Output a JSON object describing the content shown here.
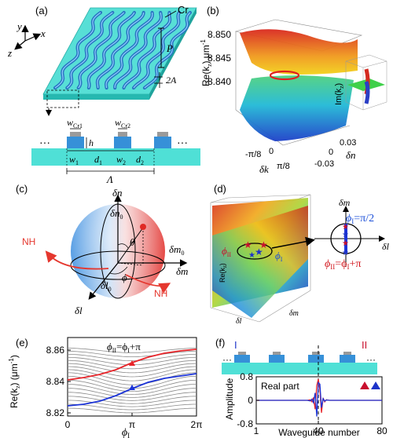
{
  "colors": {
    "substrate": "#3fd6cf",
    "substrate_dark": "#25b7b0",
    "wg": "#2f7fc7",
    "cr": "#9c9c9c",
    "band_red": "#e8252a",
    "band_blue": "#1c34d8",
    "band_gray": "#7a7a7a",
    "nh_red": "#e5372e",
    "star_red": "#c8102e",
    "star_blue": "#1d34c9",
    "phi_blue": "#1b4fd8",
    "phi_red": "#d2151c"
  },
  "panel_a": {
    "label": "(a)",
    "axis_x": "x",
    "axis_y": "y",
    "axis_z": "z",
    "cr": "Cr",
    "p": "P",
    "two_a": "2A",
    "w_cr1": "w",
    "w_cr1_sub": "Cr1",
    "w_cr2": "w",
    "w_cr2_sub": "Cr2",
    "h": "h",
    "w1": "w",
    "w1_sub": "1",
    "d1": "d",
    "d1_sub": "1",
    "w2": "w",
    "w2_sub": "2",
    "d2": "d",
    "d2_sub": "2",
    "lambda": "Λ",
    "dots": "···"
  },
  "panel_b": {
    "label": "(b)",
    "zlabel": "Re(k",
    "zlabel_sub": "z",
    "zlabel_unit": ") μm",
    "zlabel_exp": "-1",
    "zticks": [
      "8.850",
      "8.845",
      "8.840"
    ],
    "xticks": [
      "-π/8",
      "0",
      "π/8"
    ],
    "xlabel": "δk",
    "yticks": [
      "0.03",
      "0",
      "-0.03"
    ],
    "ylabel": "δn",
    "inset_label": "Im(k",
    "inset_sub": "z",
    "inset_close": ")"
  },
  "panel_c": {
    "label": "(c)",
    "dn": "δn",
    "dn0": "δn",
    "dn0_sub": "0",
    "dm": "δm",
    "dm0": "δm",
    "dm0_sub": "0",
    "dl": "δl",
    "dl0": "δl",
    "dl0_sub": "0",
    "theta": "θ",
    "phi": "ϕ",
    "nh_left": "NH",
    "nh_right": "NH"
  },
  "panel_d": {
    "label": "(d)",
    "zlabel": "Re(k",
    "zlabel_sub": "z",
    "zlabel_close": ")",
    "xlabel": "δl",
    "ylabel": "δm",
    "phi_ii": "ϕ",
    "phi_ii_sub": "II",
    "phi_i": "ϕ",
    "phi_i_sub": "I",
    "circle_dm": "δm",
    "circle_dl": "δl",
    "eq_blue": "ϕ",
    "eq_blue_sub": "I",
    "eq_blue_rhs": "=π/2",
    "eq_red": "ϕ",
    "eq_red_sub": "II",
    "eq_red_mid": "=ϕ",
    "eq_red_mid_sub": "I",
    "eq_red_rhs": "+π"
  },
  "panel_e": {
    "label": "(e)",
    "ylabel": "Re(k",
    "ylabel_sub": "z",
    "ylabel_unit": ") (μm",
    "ylabel_exp": "-1",
    "ylabel_close": ")",
    "xlabel": "ϕ",
    "xlabel_sub": "I",
    "annotation": "ϕ",
    "annotation_sub": "II",
    "annotation_mid": "=ϕ",
    "annotation_mid_sub": "I",
    "annotation_rhs": "+π",
    "yticks": [
      "8.86",
      "8.84",
      "8.82"
    ],
    "xticks": [
      "0",
      "π",
      "2π"
    ]
  },
  "panel_f": {
    "label": "(f)",
    "region_i": "I",
    "region_ii": "II",
    "dots": "···",
    "legend": "Real part",
    "ylabel": "Amplitude",
    "xlabel": "Waveguide number",
    "yticks": [
      "0.8",
      "0",
      "-0.8"
    ],
    "xticks": [
      "1",
      "40",
      "80"
    ]
  },
  "chart_data": [
    {
      "type": "line",
      "panel": "e",
      "xlabel": "ϕI",
      "ylabel": "Re(kz) (μm-1)",
      "xlim": [
        0,
        6.2832
      ],
      "ylim": [
        8.818,
        8.868
      ],
      "xticks": [
        "0",
        "π",
        "2π"
      ],
      "yticks": [
        8.86,
        8.84,
        8.82
      ],
      "x": [
        0,
        0.785,
        1.571,
        2.356,
        3.142,
        3.927,
        4.712,
        5.498,
        6.283
      ],
      "series": [
        {
          "values": [
            8.841,
            8.8425,
            8.8445,
            8.8475,
            8.852,
            8.8555,
            8.858,
            8.8595,
            8.8605
          ]
        },
        {
          "values": [
            8.8245,
            8.8255,
            8.8275,
            8.831,
            8.8355,
            8.8395,
            8.842,
            8.8435,
            8.845
          ]
        }
      ],
      "markers": [
        {
          "x": 3.142,
          "y": 8.8515
        },
        {
          "x": 3.142,
          "y": 8.836
        }
      ],
      "annotation": "ϕII=ϕI+π"
    },
    {
      "type": "line",
      "panel": "f",
      "xlabel": "Waveguide number",
      "ylabel": "Amplitude",
      "xlim": [
        1,
        80
      ],
      "ylim": [
        -0.8,
        0.8
      ],
      "xticks": [
        1,
        40,
        80
      ],
      "yticks": [
        0.8,
        0,
        -0.8
      ],
      "x": [
        30,
        33,
        35,
        36,
        37,
        38,
        39,
        40,
        41,
        42,
        43,
        44,
        45,
        47,
        50
      ],
      "series": [
        {
          "values": [
            0,
            0,
            0.02,
            -0.05,
            0.1,
            -0.3,
            0.5,
            0.72,
            0.35,
            -0.42,
            0.08,
            -0.05,
            0.02,
            0,
            0
          ]
        },
        {
          "values": [
            0,
            0,
            -0.02,
            0.04,
            -0.08,
            0.25,
            -0.55,
            0.6,
            0.55,
            -0.25,
            0.06,
            -0.03,
            0.01,
            0,
            0
          ]
        }
      ],
      "legend": "Real part"
    }
  ]
}
